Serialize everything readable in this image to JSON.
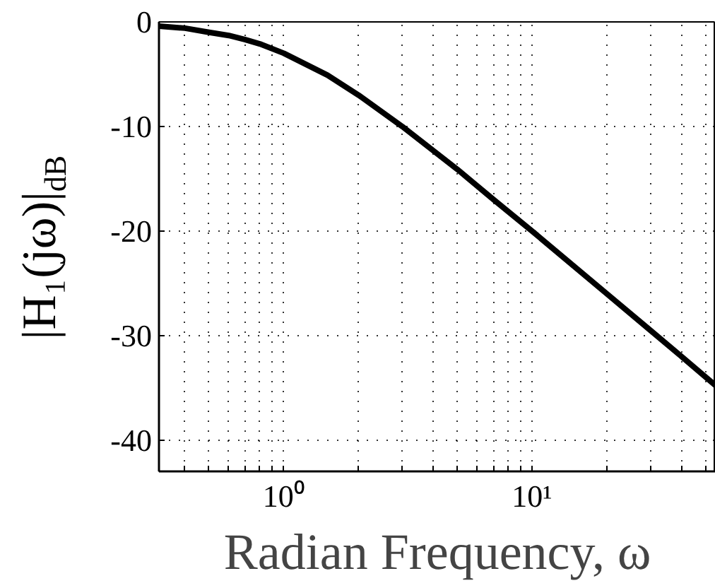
{
  "chart_data": {
    "type": "line",
    "xlabel": "Radian Frequency, ω",
    "ylabel": "|H₁(jω)|$_{dB}$",
    "log": "x",
    "grid": true,
    "line_style": "solid",
    "xlim": [
      0.314,
      55
    ],
    "ylim": [
      -43,
      0
    ],
    "xticks": [
      {
        "value": 0.4,
        "label": null
      },
      {
        "value": 0.5,
        "label": null
      },
      {
        "value": 0.6,
        "label": null
      },
      {
        "value": 0.7,
        "label": null
      },
      {
        "value": 0.8,
        "label": null
      },
      {
        "value": 0.9,
        "label": null
      },
      {
        "value": 1,
        "label": "10⁰"
      },
      {
        "value": 2,
        "label": null
      },
      {
        "value": 3,
        "label": null
      },
      {
        "value": 4,
        "label": null
      },
      {
        "value": 5,
        "label": null
      },
      {
        "value": 6,
        "label": null
      },
      {
        "value": 7,
        "label": null
      },
      {
        "value": 8,
        "label": null
      },
      {
        "value": 9,
        "label": null
      },
      {
        "value": 10,
        "label": "10¹"
      },
      {
        "value": 20,
        "label": null
      },
      {
        "value": 30,
        "label": null
      },
      {
        "value": 40,
        "label": null
      },
      {
        "value": 50,
        "label": null
      }
    ],
    "yticks": [
      0,
      -10,
      -20,
      -30,
      -40
    ],
    "series": [
      {
        "color": "#000000",
        "x": [
          0.314,
          0.4,
          0.5,
          0.6,
          0.7,
          0.8,
          1,
          1.5,
          2,
          3,
          5,
          7,
          10,
          20,
          30,
          40,
          55
        ],
        "values": [
          -0.4,
          -0.6,
          -1.0,
          -1.3,
          -1.7,
          -2.1,
          -3.0,
          -5.1,
          -7.0,
          -10.0,
          -14.1,
          -17.0,
          -20.0,
          -26.0,
          -29.5,
          -32.0,
          -34.8
        ]
      }
    ]
  }
}
